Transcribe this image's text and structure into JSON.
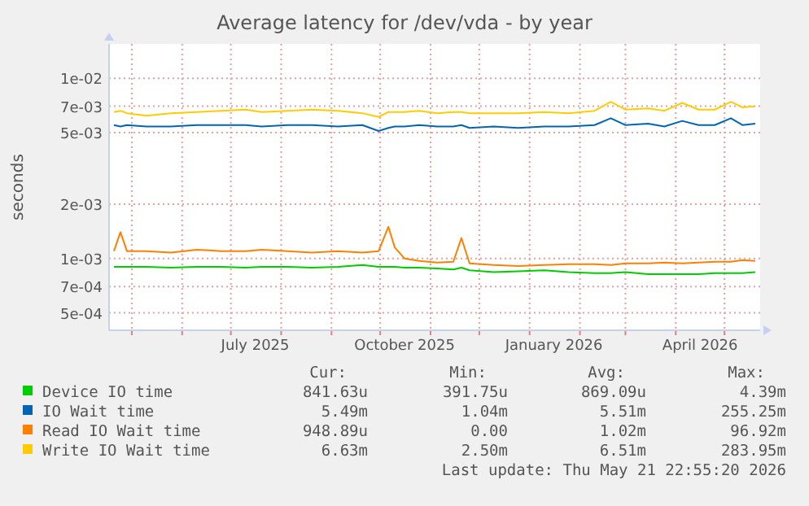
{
  "chart_data": {
    "type": "line",
    "title": "Average latency for /dev/vda - by year",
    "ylabel": "seconds",
    "log": "y",
    "grid": true,
    "legend": "bottom",
    "marker": "none",
    "line_style": "solid",
    "x": [
      "2025-04-20",
      "2025-04-24",
      "2025-04-28",
      "2025-05-10",
      "2025-05-25",
      "2025-06-10",
      "2025-06-25",
      "2025-07-10",
      "2025-07-20",
      "2025-08-05",
      "2025-08-20",
      "2025-09-05",
      "2025-09-20",
      "2025-09-30",
      "2025-10-06",
      "2025-10-10",
      "2025-10-16",
      "2025-10-25",
      "2025-11-05",
      "2025-11-15",
      "2025-11-20",
      "2025-11-25",
      "2025-12-10",
      "2025-12-25",
      "2026-01-10",
      "2026-01-25",
      "2026-02-10",
      "2026-02-20",
      "2026-03-01",
      "2026-03-15",
      "2026-03-25",
      "2026-04-05",
      "2026-04-15",
      "2026-04-25",
      "2026-05-05",
      "2026-05-12",
      "2026-05-20"
    ],
    "xlim": [
      "2025-04-17",
      "2026-05-23"
    ],
    "xticks": [
      {
        "value": "2025-05-01",
        "label": null
      },
      {
        "value": "2025-06-01",
        "label": null
      },
      {
        "value": "2025-07-01",
        "label": null
      },
      {
        "value": "2025-07-16",
        "label": "July 2025"
      },
      {
        "value": "2025-08-01",
        "label": null
      },
      {
        "value": "2025-09-01",
        "label": null
      },
      {
        "value": "2025-10-01",
        "label": null
      },
      {
        "value": "2025-10-16",
        "label": "October 2025"
      },
      {
        "value": "2025-11-01",
        "label": null
      },
      {
        "value": "2025-12-01",
        "label": null
      },
      {
        "value": "2026-01-01",
        "label": null
      },
      {
        "value": "2026-01-16",
        "label": "January 2026"
      },
      {
        "value": "2026-02-01",
        "label": null
      },
      {
        "value": "2026-03-01",
        "label": null
      },
      {
        "value": "2026-04-01",
        "label": null
      },
      {
        "value": "2026-04-16",
        "label": "April 2026"
      },
      {
        "value": "2026-05-01",
        "label": null
      }
    ],
    "ylim": [
      0.0004,
      0.0155
    ],
    "yticks": [
      {
        "value": 0.0005,
        "label": "5e-04"
      },
      {
        "value": 0.0007,
        "label": "7e-04"
      },
      {
        "value": 0.001,
        "label": "1e-03"
      },
      {
        "value": 0.002,
        "label": "2e-03"
      },
      {
        "value": 0.005,
        "label": "5e-03"
      },
      {
        "value": 0.007,
        "label": "7e-03"
      },
      {
        "value": 0.01,
        "label": "1e-02"
      }
    ],
    "series": [
      {
        "name": "Device IO time",
        "color": "#00cc00",
        "values": [
          0.0009,
          0.0009,
          0.0009,
          0.0009,
          0.00089,
          0.0009,
          0.0009,
          0.00089,
          0.0009,
          0.0009,
          0.00089,
          0.0009,
          0.00092,
          0.0009,
          0.0009,
          0.0009,
          0.00089,
          0.00089,
          0.00088,
          0.00087,
          0.00089,
          0.00086,
          0.00084,
          0.00085,
          0.00086,
          0.00084,
          0.00083,
          0.00083,
          0.00084,
          0.00082,
          0.00082,
          0.00082,
          0.00082,
          0.00083,
          0.00083,
          0.00083,
          0.00084
        ]
      },
      {
        "name": "IO Wait time",
        "color": "#0066b3",
        "values": [
          0.0055,
          0.0054,
          0.0055,
          0.0054,
          0.0054,
          0.0055,
          0.0055,
          0.0055,
          0.0054,
          0.0055,
          0.0055,
          0.0054,
          0.0055,
          0.0051,
          0.0053,
          0.0054,
          0.0054,
          0.0055,
          0.0054,
          0.0054,
          0.0055,
          0.0053,
          0.0054,
          0.0053,
          0.0054,
          0.0054,
          0.0055,
          0.006,
          0.0055,
          0.0056,
          0.0054,
          0.0058,
          0.0055,
          0.0055,
          0.006,
          0.0055,
          0.0056
        ]
      },
      {
        "name": "Read IO Wait time",
        "color": "#ff8000",
        "values": [
          0.0011,
          0.0014,
          0.0011,
          0.0011,
          0.00108,
          0.00112,
          0.0011,
          0.0011,
          0.00112,
          0.0011,
          0.00108,
          0.0011,
          0.00108,
          0.0011,
          0.0015,
          0.00115,
          0.001,
          0.00097,
          0.00095,
          0.00096,
          0.0013,
          0.00094,
          0.00092,
          0.00091,
          0.00092,
          0.00093,
          0.00093,
          0.00092,
          0.00094,
          0.00094,
          0.00095,
          0.00094,
          0.00095,
          0.00096,
          0.00096,
          0.00098,
          0.00097
        ]
      },
      {
        "name": "Write IO Wait time",
        "color": "#ffcc00",
        "values": [
          0.0065,
          0.0066,
          0.0064,
          0.0062,
          0.0064,
          0.0065,
          0.0066,
          0.0067,
          0.0065,
          0.0066,
          0.0067,
          0.0066,
          0.0064,
          0.0061,
          0.0065,
          0.0065,
          0.0065,
          0.0066,
          0.0064,
          0.0065,
          0.0065,
          0.0064,
          0.0064,
          0.0064,
          0.0065,
          0.0064,
          0.0066,
          0.0074,
          0.0067,
          0.0068,
          0.0066,
          0.0073,
          0.0067,
          0.0067,
          0.0074,
          0.0069,
          0.007
        ]
      }
    ],
    "annotations": [
      "Cur:",
      "Min:",
      "Avg:",
      "Max:",
      "841.63u",
      "391.75u",
      "869.09u",
      "4.39m",
      "5.49m",
      "1.04m",
      "5.51m",
      "255.25m",
      "948.89u",
      "0.00",
      "1.02m",
      "96.92m",
      "6.63m",
      "2.50m",
      "6.51m",
      "283.95m",
      "Last update: Thu May 21 22:55:20 2026"
    ]
  }
}
